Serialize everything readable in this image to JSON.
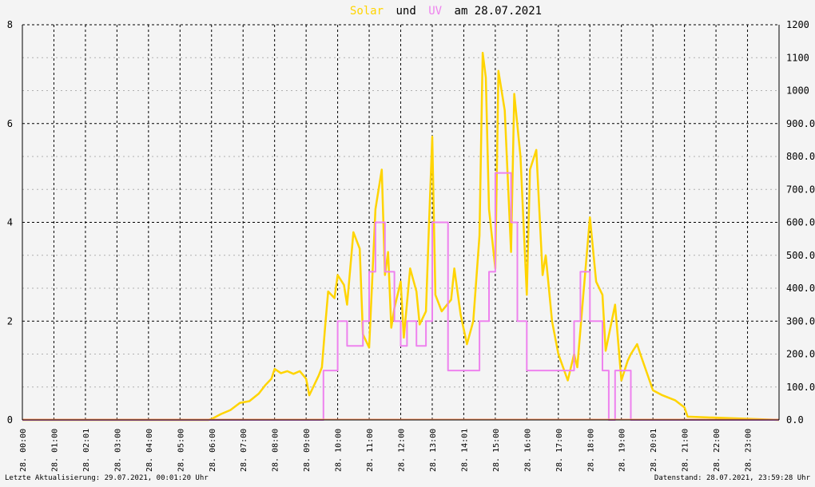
{
  "title": {
    "solar": "Solar",
    "und": "und",
    "uv": "UV",
    "rest": "am 28.07.2021"
  },
  "colors": {
    "solar": "#ffd400",
    "uv": "#ee82ee",
    "baseline": "#ff9966",
    "axis": "#000000",
    "grid_major": "#000000",
    "grid_minor": "#b0b0b0",
    "background": "#f4f4f4"
  },
  "footer": {
    "left": "Letzte Aktualisierung: 29.07.2021, 00:01:20 Uhr",
    "right": "Datenstand: 28.07.2021, 23:59:28 Uhr"
  },
  "chart_data": {
    "type": "line",
    "x_ticks": [
      "28. 00:00",
      "28. 01:00",
      "28. 02:01",
      "28. 03:00",
      "28. 04:00",
      "28. 05:00",
      "28. 06:00",
      "28. 07:00",
      "28. 08:00",
      "28. 09:00",
      "28. 10:00",
      "28. 11:00",
      "28. 12:00",
      "28. 13:00",
      "28. 14:01",
      "28. 15:00",
      "28. 16:00",
      "28. 17:00",
      "28. 18:00",
      "28. 19:00",
      "28. 20:01",
      "28. 21:00",
      "28. 22:00",
      "28. 23:00"
    ],
    "xlim": [
      0,
      24
    ],
    "y_left_ticks": [
      "0",
      "2",
      "4",
      "6",
      "8"
    ],
    "y_left_lim": [
      0,
      8
    ],
    "y_right_ticks": [
      "0.0",
      "100.0",
      "200.0",
      "300.0",
      "400.0",
      "500.0",
      "600.0",
      "700.0",
      "800.0",
      "900.0",
      "1000",
      "1100",
      "1200"
    ],
    "y_right_lim": [
      0,
      1200
    ],
    "grid": true,
    "series": [
      {
        "name": "Solar",
        "axis": "right",
        "x": [
          0,
          5.9,
          6.0,
          6.3,
          6.6,
          6.9,
          7.2,
          7.5,
          7.7,
          7.9,
          8.0,
          8.2,
          8.4,
          8.6,
          8.8,
          9.0,
          9.1,
          9.4,
          9.5,
          9.6,
          9.7,
          9.9,
          10.0,
          10.2,
          10.3,
          10.5,
          10.7,
          10.8,
          11.0,
          11.2,
          11.4,
          11.5,
          11.6,
          11.7,
          11.8,
          12.0,
          12.1,
          12.3,
          12.5,
          12.6,
          12.8,
          12.9,
          13.0,
          13.1,
          13.3,
          13.6,
          13.7,
          13.9,
          14.1,
          14.3,
          14.5,
          14.6,
          14.7,
          14.8,
          15.0,
          15.1,
          15.3,
          15.5,
          15.6,
          15.8,
          16.0,
          16.1,
          16.3,
          16.5,
          16.6,
          16.8,
          17.0,
          17.3,
          17.5,
          17.6,
          17.8,
          18.0,
          18.2,
          18.4,
          18.5,
          18.8,
          19.0,
          19.2,
          19.3,
          19.5,
          19.6,
          20.0,
          20.3,
          20.7,
          21.0,
          21.1,
          24.0
        ],
        "y": [
          0,
          0,
          3,
          18,
          30,
          52,
          57,
          80,
          105,
          125,
          155,
          142,
          148,
          140,
          148,
          125,
          75,
          135,
          160,
          280,
          390,
          370,
          440,
          410,
          350,
          570,
          520,
          260,
          220,
          640,
          760,
          440,
          510,
          280,
          340,
          420,
          250,
          460,
          390,
          290,
          330,
          600,
          860,
          380,
          330,
          365,
          460,
          320,
          230,
          300,
          560,
          1115,
          1040,
          640,
          460,
          1060,
          940,
          510,
          990,
          800,
          380,
          760,
          820,
          440,
          500,
          300,
          200,
          120,
          200,
          160,
          390,
          615,
          420,
          380,
          210,
          350,
          120,
          180,
          200,
          230,
          200,
          90,
          75,
          60,
          38,
          10,
          0
        ]
      },
      {
        "name": "UV",
        "axis": "left",
        "x": [
          0,
          9.5,
          9.55,
          9.75,
          10.0,
          10.3,
          10.8,
          11.0,
          11.2,
          11.5,
          11.8,
          12.0,
          12.2,
          12.5,
          12.8,
          13.0,
          13.5,
          14.0,
          14.5,
          14.8,
          15.0,
          15.5,
          15.7,
          16.0,
          16.5,
          17.5,
          17.7,
          18.0,
          18.4,
          18.6,
          18.8,
          19.0,
          19.3,
          19.6,
          20.0,
          24.0
        ],
        "y": [
          0,
          0,
          1,
          1,
          2,
          1.5,
          2,
          3,
          4,
          3,
          2,
          1.5,
          2,
          1.5,
          2,
          4,
          1,
          1,
          2,
          3,
          5,
          4,
          2,
          1,
          1,
          2,
          3,
          2,
          1,
          0,
          1,
          1,
          0,
          0,
          0,
          0
        ]
      }
    ]
  }
}
